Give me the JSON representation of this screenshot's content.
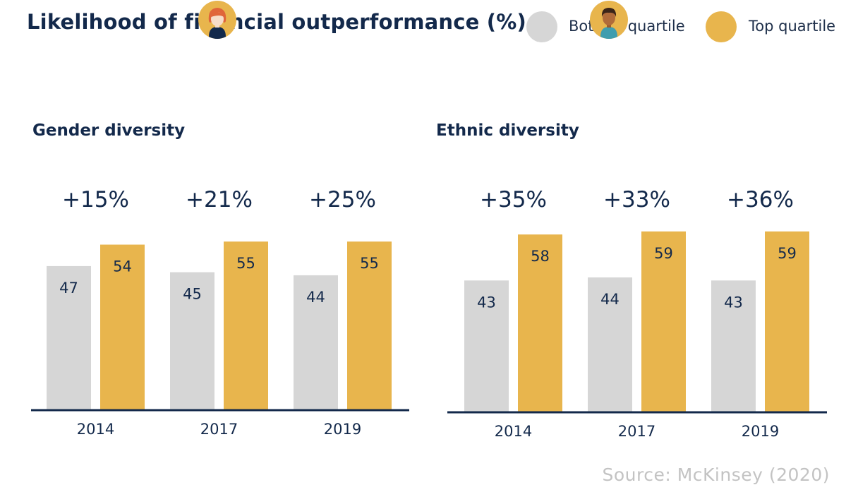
{
  "title": "Likelihood of financial outperformance (%)",
  "legend": [
    {
      "label": "Bottom quartile",
      "color": "#d6d6d6"
    },
    {
      "label": "Top quartile",
      "color": "#e8b54d"
    }
  ],
  "source": "Source: McKinsey (2020)",
  "colors": {
    "bottom": "#d6d6d6",
    "top": "#e8b54d",
    "axis": "#13294b",
    "text": "#13294b"
  },
  "chart_data": [
    {
      "type": "bar",
      "title": "Gender diversity",
      "icon": "woman-avatar-icon",
      "categories": [
        "2014",
        "2017",
        "2019"
      ],
      "series": [
        {
          "name": "Bottom quartile",
          "values": [
            47,
            45,
            44
          ]
        },
        {
          "name": "Top quartile",
          "values": [
            54,
            55,
            55
          ]
        }
      ],
      "annotations": [
        "+15%",
        "+21%",
        "+25%"
      ],
      "ylim": [
        0,
        76
      ],
      "grid": false,
      "legend": "top-right"
    },
    {
      "type": "bar",
      "title": "Ethnic diversity",
      "icon": "man-avatar-icon",
      "categories": [
        "2014",
        "2017",
        "2019"
      ],
      "series": [
        {
          "name": "Bottom quartile",
          "values": [
            43,
            44,
            43
          ]
        },
        {
          "name": "Top quartile",
          "values": [
            58,
            59,
            59
          ]
        }
      ],
      "annotations": [
        "+35%",
        "+33%",
        "+36%"
      ],
      "ylim": [
        0,
        76
      ],
      "grid": false,
      "legend": "top-right"
    }
  ]
}
